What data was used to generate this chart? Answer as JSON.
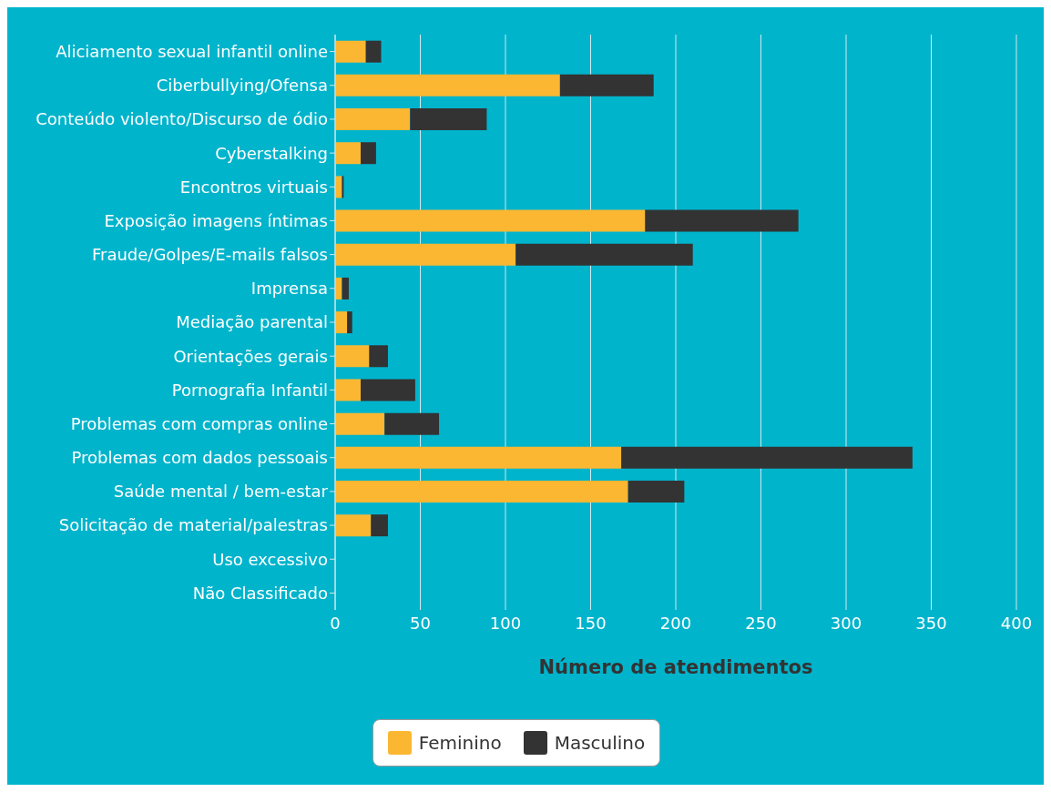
{
  "chart_data": {
    "type": "bar",
    "orientation": "horizontal",
    "stacked": true,
    "xlabel": "Número de atendimentos",
    "categories": [
      "Aliciamento sexual infantil online",
      "Ciberbullying/Ofensa",
      "Conteúdo violento/Discurso de ódio",
      "Cyberstalking",
      "Encontros virtuais",
      "Exposição imagens íntimas",
      "Fraude/Golpes/E-mails falsos",
      "Imprensa",
      "Mediação parental",
      "Orientações gerais",
      "Pornografia Infantil",
      "Problemas com compras online",
      "Problemas com dados pessoais",
      "Saúde mental / bem-estar",
      "Solicitação de material/palestras",
      "Uso excessivo",
      "Não Classificado"
    ],
    "series": [
      {
        "name": "Feminino",
        "color": "#fbb732",
        "values": [
          18,
          132,
          44,
          15,
          4,
          182,
          106,
          4,
          7,
          20,
          15,
          29,
          168,
          172,
          21,
          0,
          0
        ]
      },
      {
        "name": "Masculino",
        "color": "#333333",
        "values": [
          9,
          55,
          45,
          9,
          1,
          90,
          104,
          4,
          3,
          11,
          32,
          32,
          171,
          33,
          10,
          0,
          0
        ]
      }
    ],
    "xlim": [
      0,
      400
    ],
    "xticks": [
      0,
      50,
      100,
      150,
      200,
      250,
      300,
      350,
      400
    ],
    "grid": "x",
    "legend": "bottom"
  }
}
